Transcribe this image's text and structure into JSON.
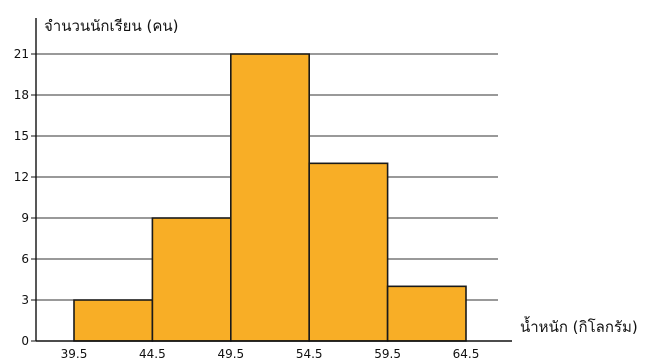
{
  "chart_data": {
    "type": "bar",
    "subtype": "histogram",
    "bins": [
      [
        39.5,
        44.5
      ],
      [
        44.5,
        49.5
      ],
      [
        49.5,
        54.5
      ],
      [
        54.5,
        59.5
      ],
      [
        59.5,
        64.5
      ]
    ],
    "values": [
      3,
      9,
      21,
      13,
      4
    ],
    "x_ticks": [
      "39.5",
      "44.5",
      "49.5",
      "54.5",
      "59.5",
      "64.5"
    ],
    "y_ticks": [
      "0",
      "3",
      "6",
      "9",
      "12",
      "15",
      "18",
      "21"
    ],
    "ylim": [
      0,
      21
    ],
    "xlim": [
      39.5,
      64.5
    ],
    "ylabel": "จำนวนนักเรียน (คน)",
    "xlabel": "น้ำหนัก (กิโลกรัม)",
    "grid": "horizontal",
    "bar_color": "#f8ae26",
    "edge_color": "#1a1a1a",
    "grid_color": "#333333"
  }
}
